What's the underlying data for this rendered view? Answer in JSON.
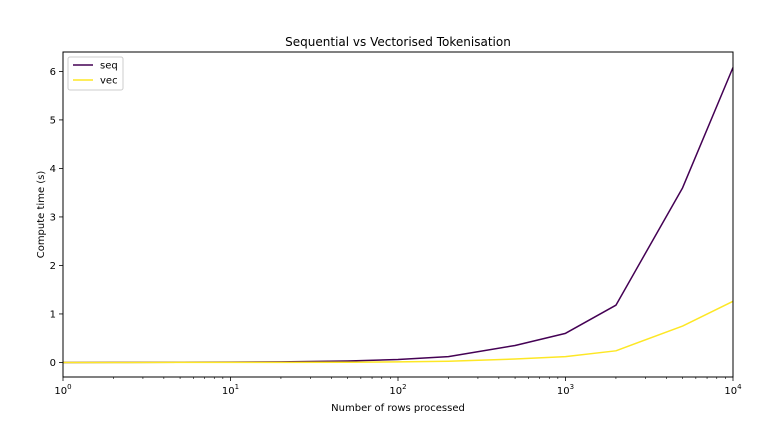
{
  "chart_data": {
    "type": "line",
    "title": "Sequential vs Vectorised Tokenisation",
    "xlabel": "Number of rows processed",
    "ylabel": "Compute time (s)",
    "xscale": "log",
    "xlim": [
      1,
      10000
    ],
    "ylim": [
      -0.3,
      6.4
    ],
    "x_ticks": [
      {
        "value": 1,
        "base": "10",
        "exp": "0"
      },
      {
        "value": 10,
        "base": "10",
        "exp": "1"
      },
      {
        "value": 100,
        "base": "10",
        "exp": "2"
      },
      {
        "value": 1000,
        "base": "10",
        "exp": "3"
      },
      {
        "value": 10000,
        "base": "10",
        "exp": "4"
      }
    ],
    "y_ticks": [
      {
        "value": 0,
        "label": "0"
      },
      {
        "value": 1,
        "label": "1"
      },
      {
        "value": 2,
        "label": "2"
      },
      {
        "value": 3,
        "label": "3"
      },
      {
        "value": 4,
        "label": "4"
      },
      {
        "value": 5,
        "label": "5"
      },
      {
        "value": 6,
        "label": "6"
      }
    ],
    "grid": false,
    "legend_position": "top-left",
    "series": [
      {
        "name": "seq",
        "color": "#440154",
        "x": [
          1,
          2,
          5,
          10,
          20,
          50,
          100,
          200,
          500,
          1000,
          2000,
          5000,
          10000
        ],
        "y": [
          0.0,
          0.001,
          0.003,
          0.006,
          0.012,
          0.03,
          0.06,
          0.12,
          0.35,
          0.6,
          1.18,
          3.6,
          6.08
        ]
      },
      {
        "name": "vec",
        "color": "#fde725",
        "x": [
          1,
          2,
          5,
          10,
          20,
          50,
          100,
          200,
          500,
          1000,
          2000,
          5000,
          10000
        ],
        "y": [
          0.0,
          0.0,
          0.001,
          0.001,
          0.002,
          0.005,
          0.012,
          0.025,
          0.07,
          0.12,
          0.24,
          0.75,
          1.26
        ]
      }
    ]
  }
}
